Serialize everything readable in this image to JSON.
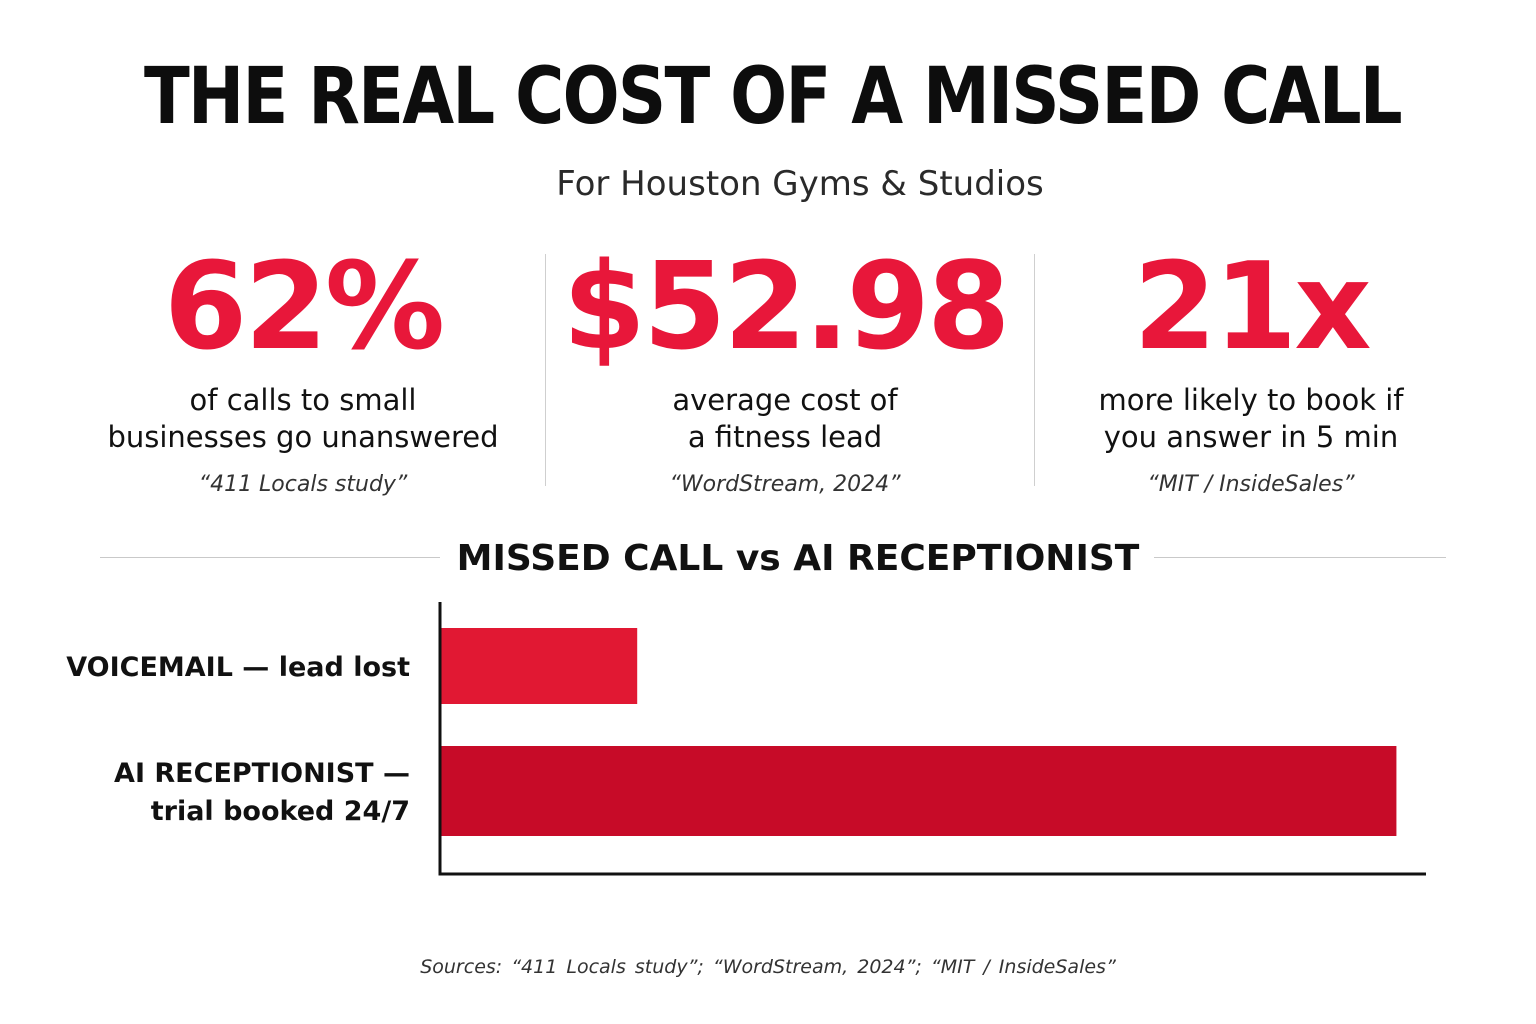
{
  "header": {
    "title": "THE REAL COST OF A MISSED CALL",
    "subtitle": "For Houston Gyms & Studios"
  },
  "stats": [
    {
      "value": "62%",
      "description": "of calls to small\nbusinesses go unanswered",
      "source": "“411 Locals study”"
    },
    {
      "value": "$52.98",
      "description": "average cost of\na fitness lead",
      "source": "“WordStream, 2024”"
    },
    {
      "value": "21x",
      "description": "more likely to book if\nyou answer in 5 min",
      "source": "“MIT / InsideSales”"
    }
  ],
  "colors": {
    "accent": "#e8173a",
    "bar_voicemail": "#e11833",
    "bar_ai": "#c70b28",
    "axis": "#111111",
    "rule": "#c9c9c9"
  },
  "chart_data": {
    "type": "bar",
    "orientation": "horizontal",
    "title": "MISSED CALL vs AI RECEPTIONIST",
    "categories": [
      "VOICEMAIL — lead lost",
      "AI RECEPTIONIST — trial booked 24/7"
    ],
    "category_lines": [
      [
        "VOICEMAIL — lead lost"
      ],
      [
        "AI RECEPTIONIST —",
        "trial booked 24/7"
      ]
    ],
    "values": [
      20,
      97
    ],
    "xlim": [
      0,
      100
    ],
    "xlabel": "",
    "ylabel": "",
    "grid": false,
    "legend": "none"
  },
  "footer": {
    "sources": "Sources:  “411 Locals study”;  “WordStream, 2024”;  “MIT / InsideSales”"
  }
}
